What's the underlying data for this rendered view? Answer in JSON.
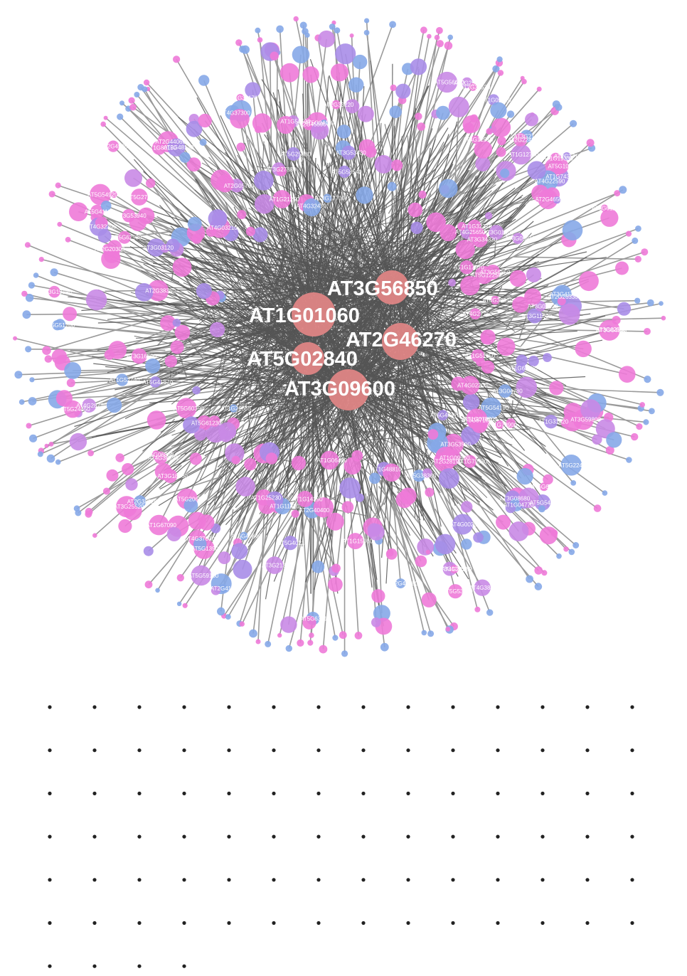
{
  "palette": {
    "hub_fill": "#de8585",
    "node_pink": "#ee7ad8",
    "node_violet": "#c98ae6",
    "node_lavender": "#a98de8",
    "node_blue": "#86a9e8",
    "edge_dark": "#555555",
    "edge_light": "#9a9a9a",
    "label_color": "#ffffff",
    "dot_color": "#222222"
  },
  "hubs": [
    {
      "id": "AT1G01060",
      "label": "AT1G01060"
    },
    {
      "id": "AT3G56850",
      "label": "AT3G56850"
    },
    {
      "id": "AT2G46270",
      "label": "AT2G46270"
    },
    {
      "id": "AT5G02840",
      "label": "AT5G02840"
    },
    {
      "id": "AT3G09600",
      "label": "AT3G09600"
    }
  ],
  "peripheral_labels": [
    "AT3G56850",
    "AT1G17870",
    "AT5G54920",
    "AT2G41370",
    "AT4G27750",
    "AT3G11600",
    "AT3G59800",
    "AT5G41190",
    "AT5G06850",
    "AT5G54170",
    "AT3G21380",
    "AT4G37300",
    "AT5G12250",
    "AT1G06460",
    "AT2G40400",
    "AT5G25880",
    "AT2G25000",
    "AT5G61230",
    "AT3G41740",
    "AT5G62530",
    "AT3G34330",
    "AT1G09020",
    "AT3G21600",
    "AT3G62550",
    "AT1G79530",
    "AT3G05920",
    "AT2G45080",
    "AT3G16500",
    "AT5G13900",
    "AT1G15060",
    "AT4G25650",
    "AT2G05760",
    "AT5G58540",
    "AT3G19190",
    "AT4G28770",
    "AT5G24450",
    "AT5G59180",
    "AT1G12760",
    "AT5G56030",
    "AT3G05810",
    "AT4G38460",
    "AT1G32270",
    "AT1G21250",
    "AT2G26330",
    "AT3G08680",
    "AT5G38360",
    "AT1G78900",
    "AT2G33220",
    "AT1G48810",
    "AT5G22470",
    "AT3G17700",
    "AT2G20300",
    "AT1G04770",
    "AT4G37000",
    "AT5G54190",
    "AT1G26665",
    "AT3G53500",
    "AT1G74320",
    "AT3G25520",
    "AT5G51700",
    "AT1G31420",
    "AT2G38360",
    "AT5G40210",
    "AT4G32390",
    "AT1G25230",
    "AT3G10980",
    "AT5G41870",
    "AT2G38220",
    "AT1G19330",
    "AT4G03210",
    "AT2G22450",
    "AT1G56500",
    "AT3G53940",
    "AT5G60390",
    "AT4G36990",
    "AT1G09560",
    "AT3G27880",
    "AT2G44060",
    "AT5G53450",
    "AT1G52740",
    "AT4G22590",
    "AT3G03120",
    "AT5G63610",
    "AT2G45590",
    "AT1G67090",
    "AT3G04780",
    "AT5G45640",
    "AT2G48130",
    "AT1G14250",
    "AT4G12910",
    "AT3G61260",
    "AT5G20630",
    "AT1G51350",
    "AT2G36530",
    "AT4G02200",
    "AT3G04840",
    "AT1G33170",
    "AT5G27150",
    "AT4G38510",
    "AT2G42380",
    "AT1G65370",
    "AT3G18860",
    "AT5G04110",
    "AT1G07870",
    "AT2G37190",
    "AT4G32470",
    "AT3G57150",
    "AT5G43470",
    "AT1G11420",
    "AT2G46560",
    "AT4G00200",
    "AT3G53430",
    "AT5G10100",
    "AT1G80150",
    "AT2G28190",
    "AT3G01500",
    "AT5G66140",
    "AT4G21380"
  ],
  "dot_grid": {
    "rows": [
      14,
      14,
      14,
      14,
      14,
      14,
      4
    ]
  }
}
